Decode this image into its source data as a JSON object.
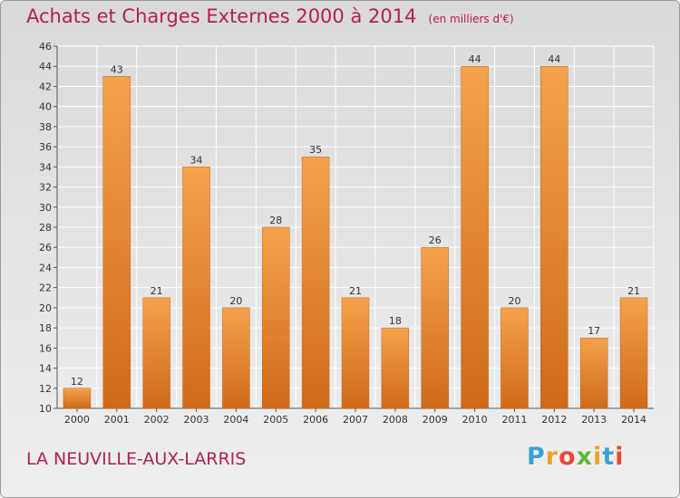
{
  "title": "Achats et Charges Externes 2000 à 2014",
  "subtitle": "(en milliers d'€)",
  "commune": "LA NEUVILLE-AUX-LARRIS",
  "logo": {
    "text": "Proxiti",
    "colors": [
      "#3aa0d8",
      "#f0a020",
      "#e84830",
      "#60b830",
      "#f0a020",
      "#3aa0d8",
      "#e84830"
    ]
  },
  "colors": {
    "bar_top": "#f5a24c",
    "bar_bottom": "#cf6a1a",
    "grid": "#ffffff",
    "text": "#333333",
    "accent": "#b41e50"
  },
  "chart_data": {
    "type": "bar",
    "title": "Achats et Charges Externes 2000 à 2014",
    "xlabel": "",
    "ylabel": "",
    "categories": [
      "2000",
      "2001",
      "2002",
      "2003",
      "2004",
      "2005",
      "2006",
      "2007",
      "2008",
      "2009",
      "2010",
      "2011",
      "2012",
      "2013",
      "2014"
    ],
    "values": [
      12,
      43,
      21,
      34,
      20,
      28,
      35,
      21,
      18,
      26,
      44,
      20,
      44,
      17,
      21
    ],
    "ylim": [
      10,
      46
    ],
    "yticks": [
      10,
      12,
      14,
      16,
      18,
      20,
      22,
      24,
      26,
      28,
      30,
      32,
      34,
      36,
      38,
      40,
      42,
      44,
      46
    ],
    "grid": true,
    "data_labels": true
  }
}
